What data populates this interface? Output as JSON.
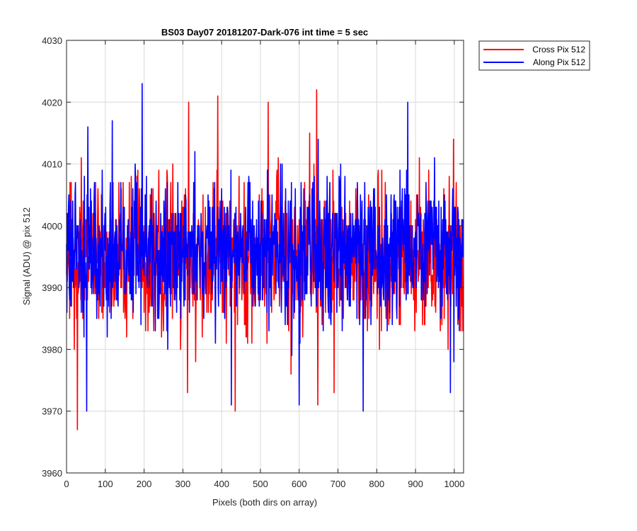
{
  "chart_data": {
    "type": "line",
    "title": "BS03 Day07 20181207-Dark-076 int time = 5 sec",
    "xlabel": "Pixels (both dirs on array)",
    "ylabel": "Signal (ADU) @ pix 512",
    "xlim": [
      0,
      1024
    ],
    "ylim": [
      3960,
      4030
    ],
    "xticks": [
      0,
      100,
      200,
      300,
      400,
      500,
      600,
      700,
      800,
      900,
      1000
    ],
    "yticks": [
      3960,
      3970,
      3980,
      3990,
      4000,
      4010,
      4020,
      4030
    ],
    "grid": true,
    "legend_position": "outside-top-right",
    "series": [
      {
        "name": "Cross Pix 512",
        "color": "#ff0000",
        "mean": 3995,
        "noise_sd": 6,
        "notable_points": [
          {
            "x": 28,
            "y": 3967
          },
          {
            "x": 315,
            "y": 4020
          },
          {
            "x": 390,
            "y": 4021
          },
          {
            "x": 435,
            "y": 3970
          },
          {
            "x": 520,
            "y": 4020
          },
          {
            "x": 645,
            "y": 4022
          },
          {
            "x": 648,
            "y": 3971
          },
          {
            "x": 312,
            "y": 3973
          },
          {
            "x": 690,
            "y": 3973
          }
        ]
      },
      {
        "name": "Along Pix 512",
        "color": "#0000ff",
        "mean": 3996,
        "noise_sd": 6,
        "notable_points": [
          {
            "x": 195,
            "y": 4023
          },
          {
            "x": 52,
            "y": 3970
          },
          {
            "x": 765,
            "y": 3970
          },
          {
            "x": 880,
            "y": 4020
          },
          {
            "x": 600,
            "y": 3971
          },
          {
            "x": 425,
            "y": 3971
          },
          {
            "x": 990,
            "y": 3973
          },
          {
            "x": 55,
            "y": 4016
          },
          {
            "x": 118,
            "y": 4017
          }
        ]
      }
    ]
  }
}
